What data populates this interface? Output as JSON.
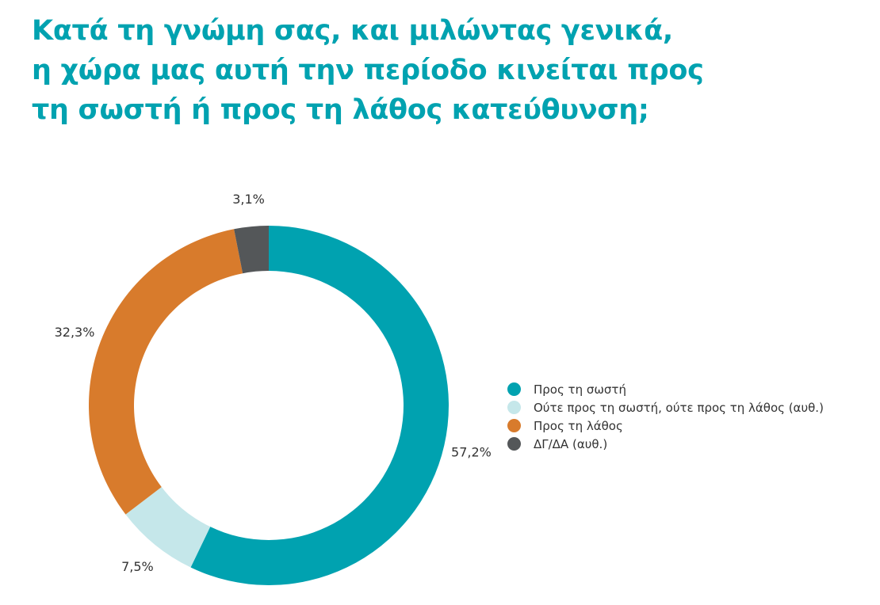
{
  "header": {
    "title_lines": [
      "Κατά τη γνώμη σας, και μιλώντας γενικά,",
      "η χώρα μας αυτή την περίοδο κινείται προς",
      "τη σωστή ή προς τη λάθος κατεύθυνση;"
    ]
  },
  "chart_data": {
    "type": "pie",
    "variant": "donut",
    "title": "Κατά τη γνώμη σας, και μιλώντας γενικά, η χώρα μας αυτή την περίοδο κινείται προς τη σωστή ή προς τη λάθος κατεύθυνση;",
    "start_angle": "12 o'clock",
    "direction": "clockwise",
    "legend_position": "right",
    "slices": [
      {
        "name": "Προς τη σωστή",
        "value": 57.2,
        "label": "57,2%",
        "color": "#00a2b0"
      },
      {
        "name": "Ούτε προς τη σωστή, ούτε προς τη λάθος (αυθ.)",
        "value": 7.5,
        "label": "7,5%",
        "color": "#c5e7ea"
      },
      {
        "name": "Προς τη λάθος",
        "value": 32.3,
        "label": "32,3%",
        "color": "#d87b2c"
      },
      {
        "name": "ΔΓ/ΔΑ (αυθ.)",
        "value": 3.1,
        "label": "3,1%",
        "color": "#545759"
      }
    ]
  }
}
